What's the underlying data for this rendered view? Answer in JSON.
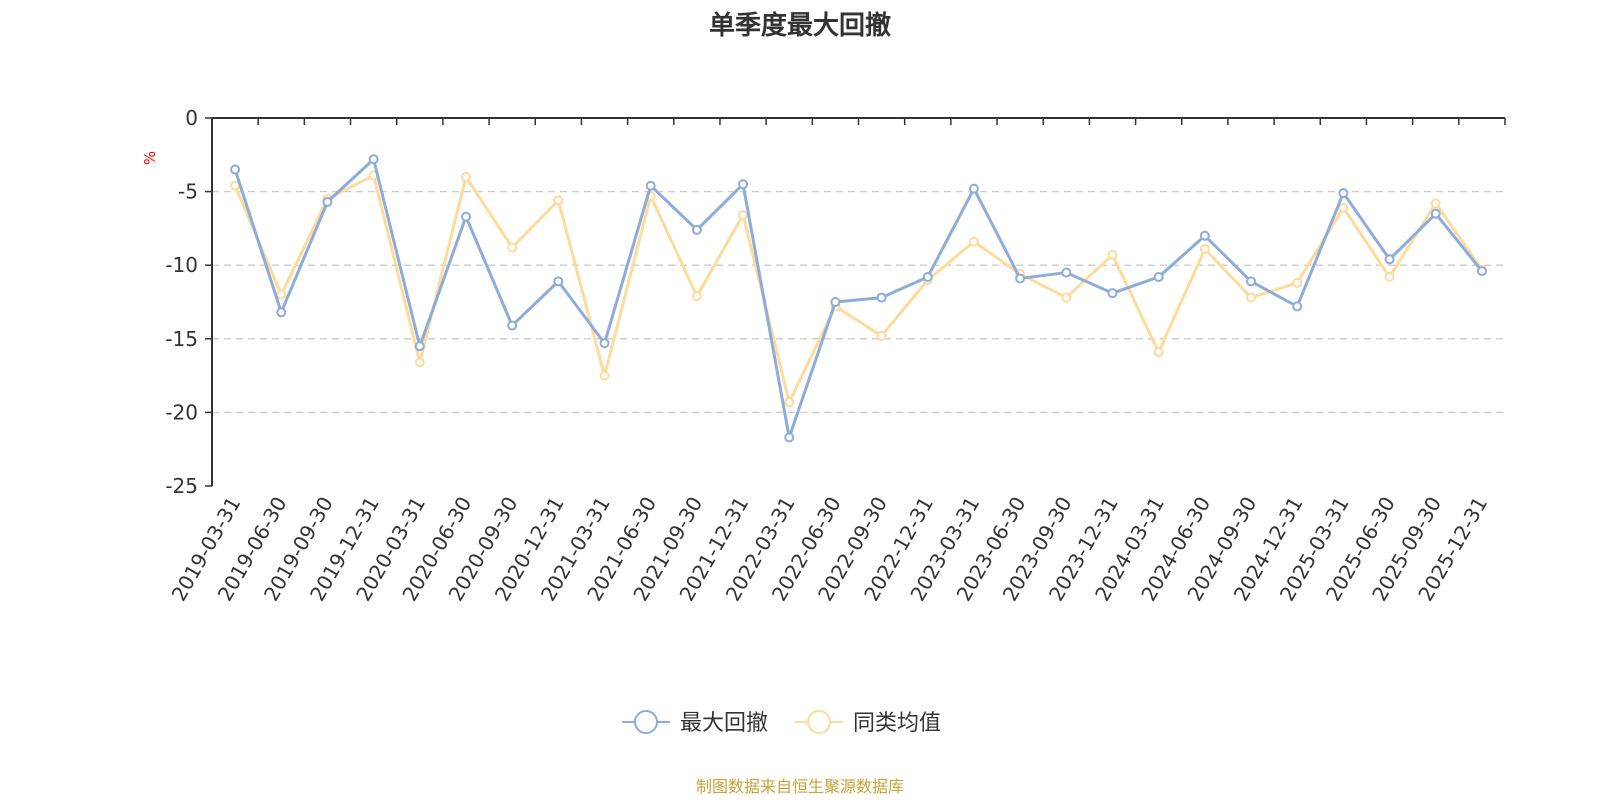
{
  "chart_data": {
    "type": "line",
    "title": "单季度最大回撤",
    "ylabel": "%",
    "ylim": [
      -25,
      0
    ],
    "yticks": [
      0,
      -5,
      -10,
      -15,
      -20,
      -25
    ],
    "grid": true,
    "legend_position": "bottom",
    "categories": [
      "2019-03-31",
      "2019-06-30",
      "2019-09-30",
      "2019-12-31",
      "2020-03-31",
      "2020-06-30",
      "2020-09-30",
      "2020-12-31",
      "2021-03-31",
      "2021-06-30",
      "2021-09-30",
      "2021-12-31",
      "2022-03-31",
      "2022-06-30",
      "2022-09-30",
      "2022-12-31",
      "2023-03-31",
      "2023-06-30",
      "2023-09-30",
      "2023-12-31",
      "2024-03-31",
      "2024-06-30",
      "2024-09-30",
      "2024-12-31",
      "2025-03-31",
      "2025-06-30",
      "2025-09-30",
      "2025-12-31"
    ],
    "series": [
      {
        "name": "最大回撤",
        "color": "#8eacd9",
        "values": [
          -3.5,
          -13.2,
          -5.7,
          -2.8,
          -15.5,
          -6.7,
          -14.1,
          -11.1,
          -15.3,
          -4.6,
          -7.6,
          -4.5,
          -21.7,
          -12.5,
          -12.2,
          -10.8,
          -4.8,
          -10.9,
          -10.5,
          -11.9,
          -10.8,
          -8.0,
          -11.1,
          -12.8,
          -5.1,
          -9.6,
          -6.5,
          -10.4
        ]
      },
      {
        "name": "同类均值",
        "color": "#fddb9c",
        "values": [
          -4.6,
          -12.0,
          -5.5,
          -3.9,
          -16.6,
          -4.0,
          -8.8,
          -5.6,
          -17.5,
          -5.3,
          -12.1,
          -6.6,
          -19.3,
          -12.8,
          -14.8,
          -11.0,
          -8.4,
          -10.6,
          -12.2,
          -9.3,
          -15.9,
          -8.9,
          -12.2,
          -11.2,
          -6.1,
          -10.8,
          -5.8,
          -10.3
        ]
      }
    ],
    "source": "制图数据来自恒生聚源数据库",
    "source_color": "#c8a33a",
    "unit_color": "#ff0000"
  }
}
